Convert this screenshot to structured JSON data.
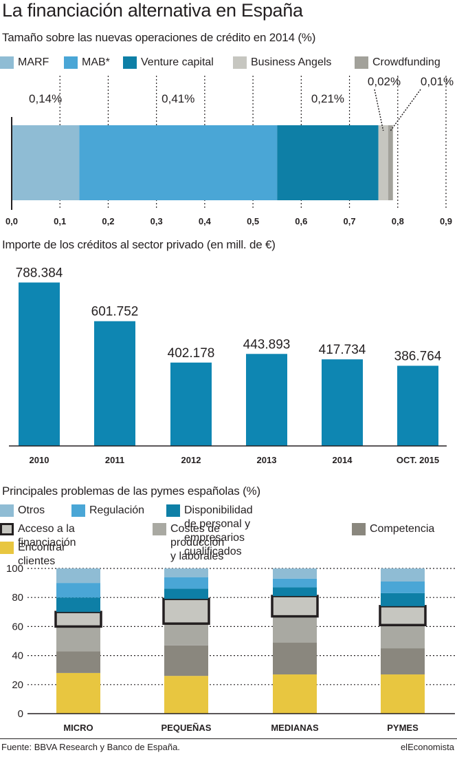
{
  "title": "La financiación alternativa en España",
  "footer": {
    "source": "Fuente: BBVA Research y Banco de España.",
    "brand": "elEconomista"
  },
  "colors": {
    "marf": "#8fbcd4",
    "mab": "#4aa6d6",
    "vc": "#0e7fa6",
    "ba": "#c6c6c0",
    "cf": "#a2a19a",
    "credit_bar": "#0e86b2",
    "otros": "#8fbcd4",
    "regulacion": "#4aa6d6",
    "personal": "#0e7fa6",
    "financiacion": "#c6c6c0",
    "costes": "#a9a9a2",
    "competencia": "#8a877e",
    "clientes": "#e8c640"
  },
  "chart_data": [
    {
      "type": "bar",
      "orientation": "horizontal-stacked",
      "title": "Tamaño sobre las nuevas operaciones de crédito en 2014 (%)",
      "series": [
        {
          "name": "MARF",
          "value": 0.14,
          "label": "0,14%",
          "color": "#8fbcd4"
        },
        {
          "name": "MAB*",
          "value": 0.41,
          "label": "0,41%",
          "color": "#4aa6d6"
        },
        {
          "name": "Venture capital",
          "value": 0.21,
          "label": "0,21%",
          "color": "#0e7fa6"
        },
        {
          "name": "Business Angels",
          "value": 0.02,
          "label": "0,02%",
          "color": "#c6c6c0"
        },
        {
          "name": "Crowdfunding",
          "value": 0.01,
          "label": "0,01%",
          "color": "#a2a19a"
        }
      ],
      "xlim": [
        0,
        0.9
      ],
      "ticks": [
        "0,0",
        "0,1",
        "0,2",
        "0,3",
        "0,4",
        "0,5",
        "0,6",
        "0,7",
        "0,8",
        "0,9"
      ]
    },
    {
      "type": "bar",
      "title": "Importe de los créditos al sector privado (en mill. de €)",
      "categories": [
        "2010",
        "2011",
        "2012",
        "2013",
        "2014",
        "OCT. 2015"
      ],
      "values": [
        788384,
        601752,
        402178,
        443893,
        417734,
        386764
      ],
      "value_labels": [
        "788.384",
        "601.752",
        "402.178",
        "443.893",
        "417.734",
        "386.764"
      ],
      "ylim": [
        0,
        800000
      ],
      "color": "#0e86b2"
    },
    {
      "type": "bar",
      "orientation": "vertical-stacked",
      "title": "Principales problemas de las pymes españolas (%)",
      "categories": [
        "MICRO",
        "PEQUEÑAS",
        "MEDIANAS",
        "PYMES"
      ],
      "ylim": [
        0,
        100
      ],
      "yticks": [
        "0",
        "20",
        "40",
        "60",
        "80",
        "100"
      ],
      "legend": [
        {
          "name": "Otros",
          "color": "#8fbcd4"
        },
        {
          "name": "Regulación",
          "color": "#4aa6d6"
        },
        {
          "name": "Disponibilidad de personal y empresarios cualificados",
          "color": "#0e7fa6"
        },
        {
          "name": "Acceso a la financiación",
          "color": "#c6c6c0"
        },
        {
          "name": "Costes de producción y laborales",
          "color": "#a9a9a2"
        },
        {
          "name": "Competencia",
          "color": "#8a877e"
        },
        {
          "name": "Encontrar clientes",
          "color": "#e8c640"
        }
      ],
      "series": [
        {
          "name": "Encontrar clientes",
          "values": [
            28,
            26,
            27,
            27
          ]
        },
        {
          "name": "Competencia",
          "values": [
            15,
            21,
            22,
            18
          ]
        },
        {
          "name": "Costes de producción y laborales",
          "values": [
            17,
            15,
            18,
            16
          ]
        },
        {
          "name": "Acceso a la financiación",
          "values": [
            10,
            17,
            14,
            13
          ]
        },
        {
          "name": "Disponibilidad de personal y empresarios cualificados",
          "values": [
            10,
            7,
            6,
            9
          ]
        },
        {
          "name": "Regulación",
          "values": [
            10,
            8,
            6,
            8
          ]
        },
        {
          "name": "Otros",
          "values": [
            10,
            6,
            7,
            9
          ]
        }
      ]
    }
  ]
}
